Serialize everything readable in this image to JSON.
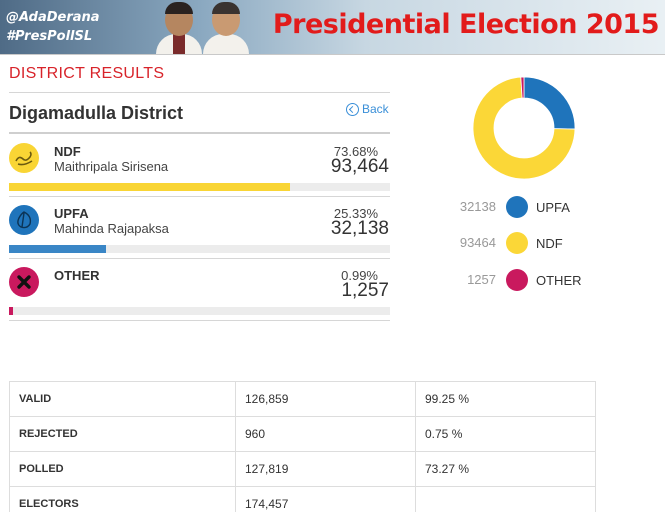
{
  "banner": {
    "handle_1": "@AdaDerana",
    "handle_2": "#PresPollSL",
    "title": "Presidential Election 2015"
  },
  "section_title": "DISTRICT RESULTS",
  "district": "Digamadulla District",
  "back_label": "Back",
  "candidates": [
    {
      "party": "NDF",
      "name": "Maithripala Sirisena",
      "percent": "73.68%",
      "votes": "93,464",
      "share": 0.7368,
      "color": "#f9d535",
      "icon": "swan-icon"
    },
    {
      "party": "UPFA",
      "name": "Mahinda Rajapaksa",
      "percent": "25.33%",
      "votes": "32,138",
      "share": 0.2533,
      "color": "#1f74bb",
      "icon": "betel-leaf-icon"
    },
    {
      "party": "OTHER",
      "name": "",
      "percent": "0.99%",
      "votes": "1,257",
      "share": 0.0099,
      "color": "#c9195e",
      "icon": "cross-icon"
    }
  ],
  "chart_data": {
    "type": "pie",
    "donut": true,
    "categories": [
      "UPFA",
      "NDF",
      "OTHER"
    ],
    "values": [
      32138,
      93464,
      1257
    ],
    "colors": [
      "#1f74bb",
      "#fbd737",
      "#c9195e"
    ],
    "legend_placement": "bottom"
  },
  "legend": [
    {
      "value": "32138",
      "label": "UPFA",
      "color": "#1f74bb"
    },
    {
      "value": "93464",
      "label": "NDF",
      "color": "#fbd737"
    },
    {
      "value": "1257",
      "label": "OTHER",
      "color": "#c9195e"
    }
  ],
  "summary": [
    {
      "label": "VALID",
      "value": "126,859",
      "percent": "99.25 %"
    },
    {
      "label": "REJECTED",
      "value": "960",
      "percent": "0.75 %"
    },
    {
      "label": "POLLED",
      "value": "127,819",
      "percent": "73.27 %"
    },
    {
      "label": "ELECTORS",
      "value": "174,457",
      "percent": ""
    }
  ]
}
